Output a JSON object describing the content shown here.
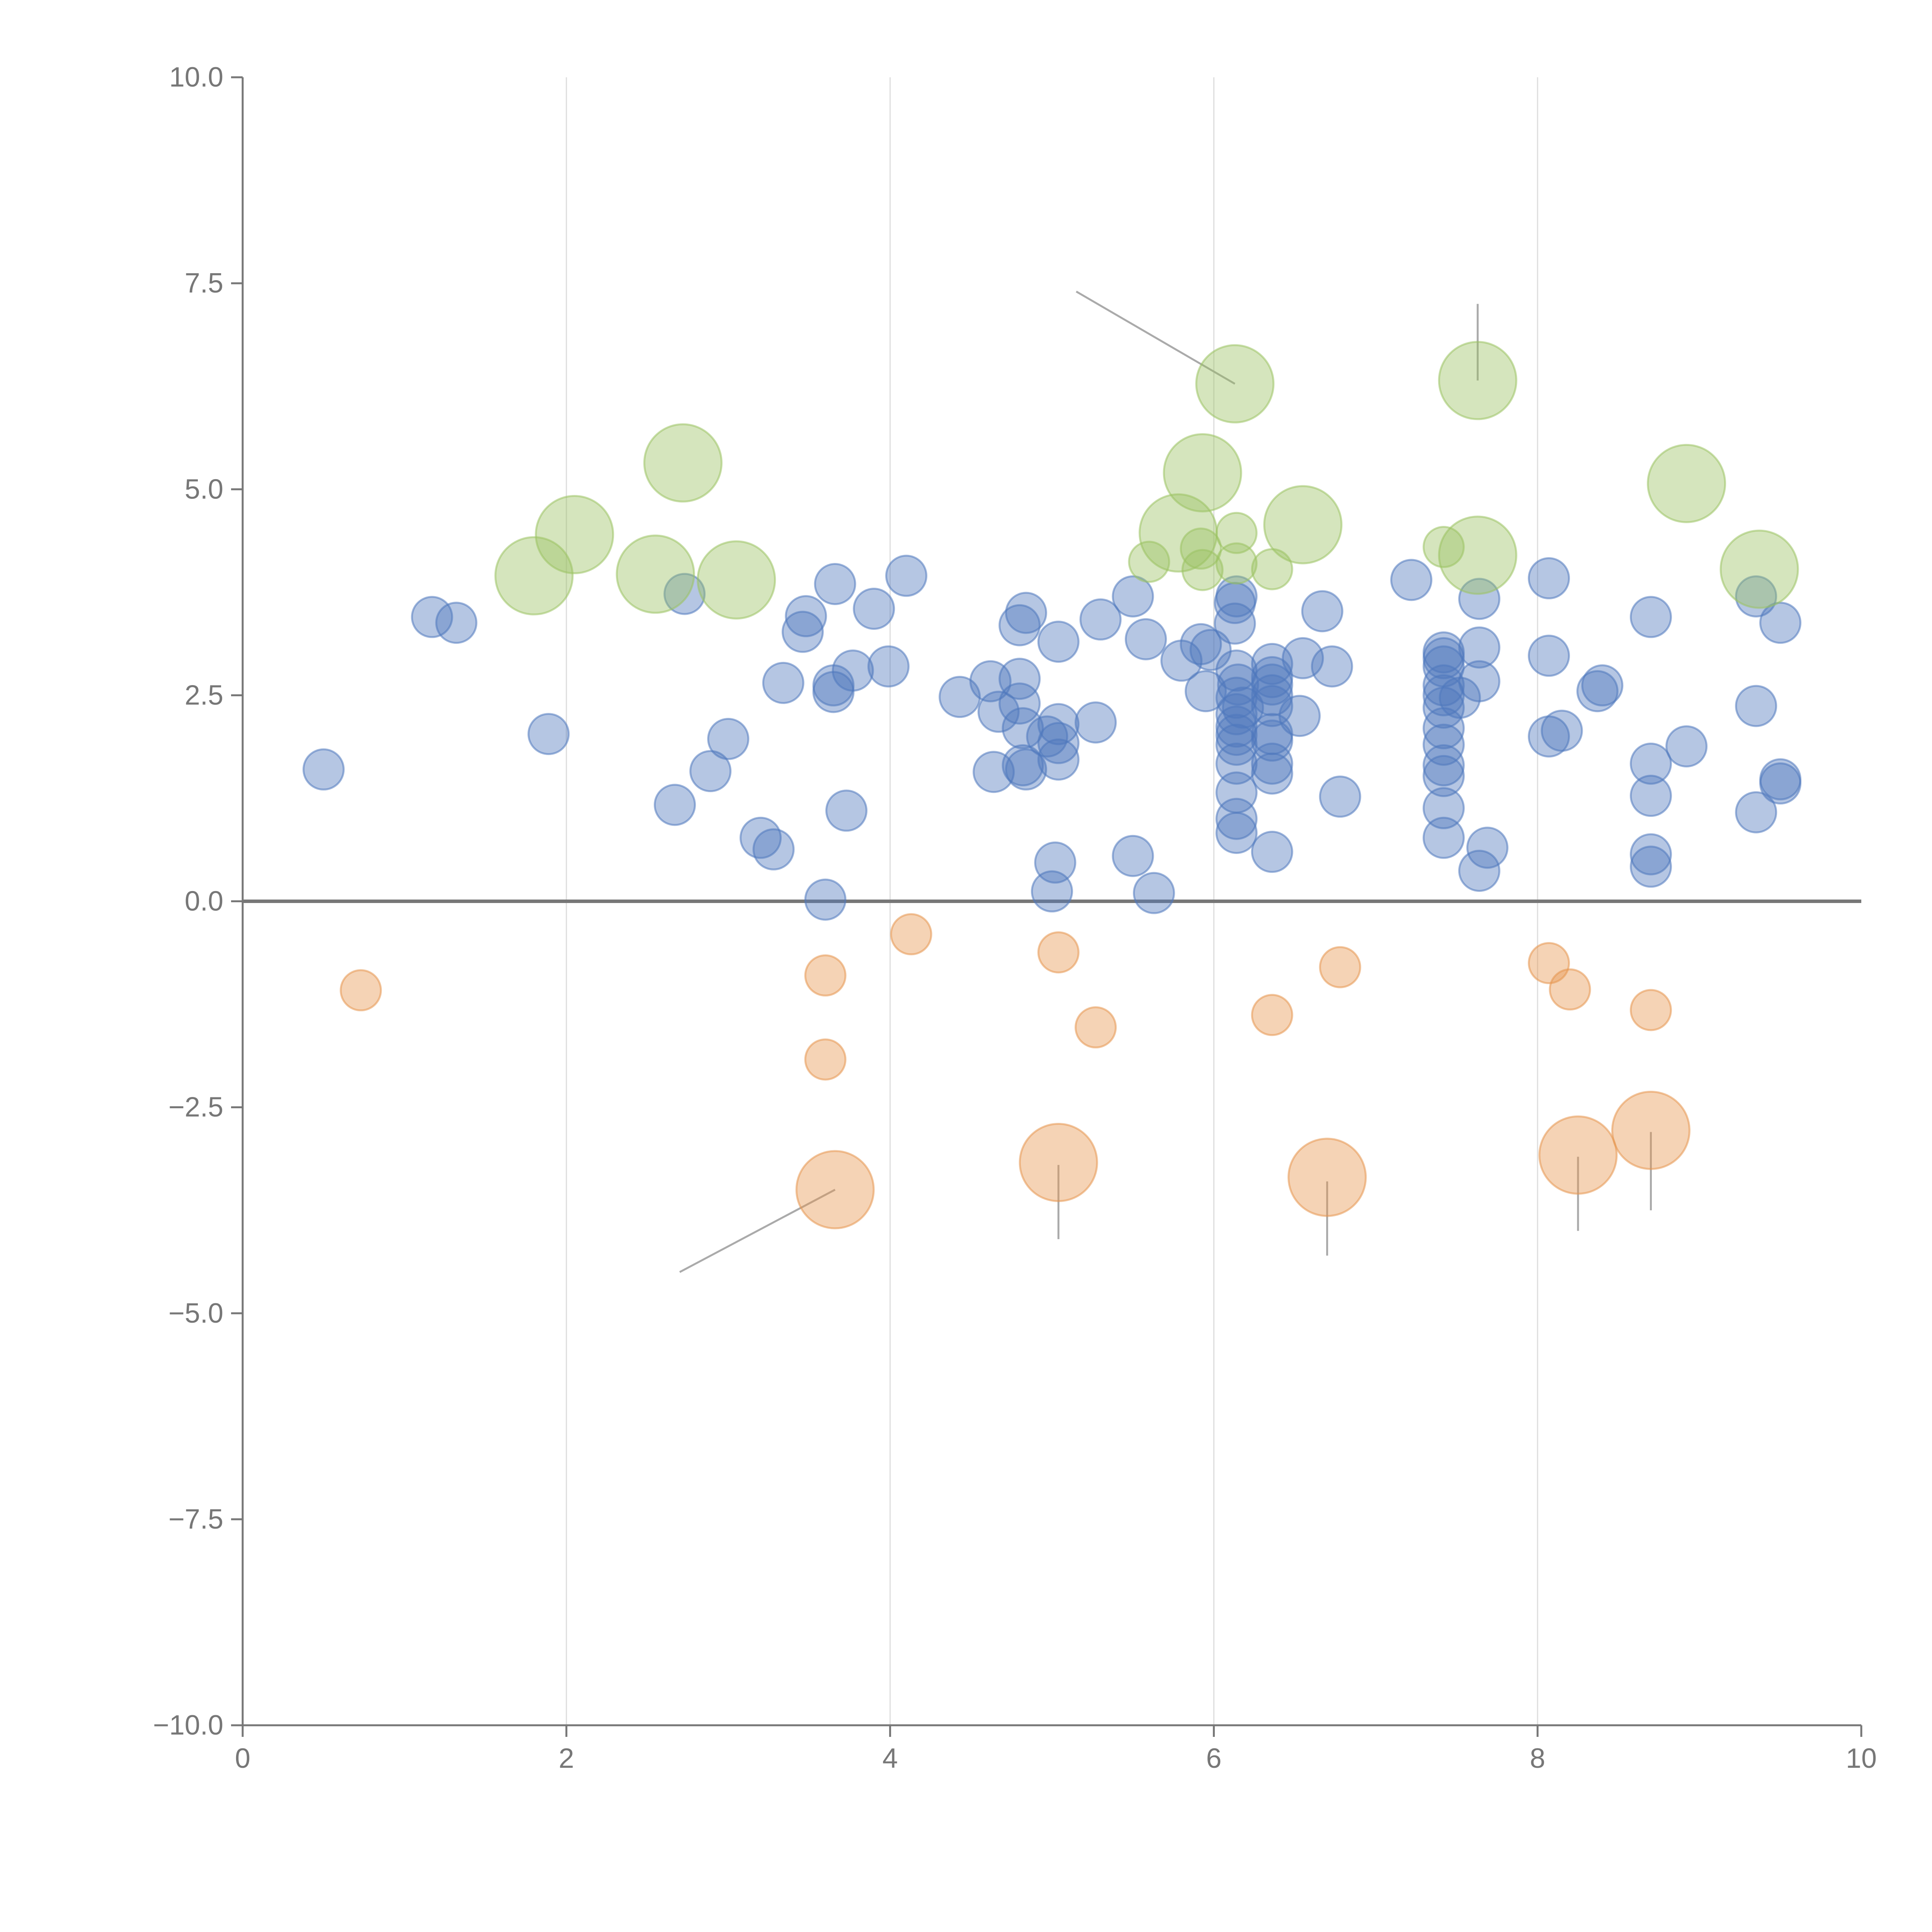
{
  "chart_data": {
    "type": "scatter",
    "title": "",
    "xlabel": "",
    "ylabel": "",
    "xlim": [
      0,
      10
    ],
    "ylim": [
      -10,
      10
    ],
    "x_ticks": [
      0,
      2,
      4,
      6,
      8,
      10
    ],
    "x_tick_labels": [
      "0",
      "2",
      "4",
      "6",
      "8",
      "10"
    ],
    "y_ticks": [
      10,
      7.5,
      5,
      2.5,
      0,
      -2.5,
      -5,
      -7.5,
      -10
    ],
    "y_tick_labels": [
      "10.0",
      "7.5",
      "5.0",
      "2.5",
      "0.0",
      "−2.5",
      "−5.0",
      "−7.5",
      "−10.0"
    ],
    "grid": {
      "x": true,
      "y": false
    },
    "zero_line": 0,
    "colors": {
      "blue": "#4f78bd",
      "green": "#9bc262",
      "orange": "#e6964f",
      "axis": "#777777",
      "grid": "#dddddd",
      "zero_line": "#777777",
      "leader": "#aaaaaa"
    },
    "series": [
      {
        "name": "positive",
        "color": "#4f78bd",
        "size": "small",
        "points": [
          [
            0.5,
            1.6
          ],
          [
            1.17,
            3.45
          ],
          [
            1.32,
            3.38
          ],
          [
            1.89,
            2.03
          ],
          [
            2.67,
            1.17
          ],
          [
            2.73,
            3.73
          ],
          [
            2.89,
            1.58
          ],
          [
            3.0,
            1.97
          ],
          [
            3.2,
            0.77
          ],
          [
            3.28,
            0.63
          ],
          [
            3.34,
            2.65
          ],
          [
            3.46,
            3.27
          ],
          [
            3.48,
            3.46
          ],
          [
            3.6,
            0.02
          ],
          [
            3.65,
            2.62
          ],
          [
            3.65,
            2.54
          ],
          [
            3.66,
            3.85
          ],
          [
            3.73,
            1.1
          ],
          [
            3.77,
            2.8
          ],
          [
            3.9,
            3.55
          ],
          [
            3.99,
            2.85
          ],
          [
            4.1,
            3.95
          ],
          [
            4.43,
            2.48
          ],
          [
            4.62,
            2.67
          ],
          [
            4.64,
            1.57
          ],
          [
            4.67,
            2.3
          ],
          [
            4.8,
            2.7
          ],
          [
            4.8,
            3.35
          ],
          [
            4.8,
            2.4
          ],
          [
            4.82,
            2.1
          ],
          [
            4.82,
            1.65
          ],
          [
            4.84,
            3.5
          ],
          [
            4.84,
            1.6
          ],
          [
            4.97,
            2.0
          ],
          [
            5.0,
            0.12
          ],
          [
            5.02,
            0.47
          ],
          [
            5.04,
            1.72
          ],
          [
            5.04,
            2.15
          ],
          [
            5.04,
            1.92
          ],
          [
            5.04,
            3.15
          ],
          [
            5.27,
            2.17
          ],
          [
            5.3,
            3.42
          ],
          [
            5.5,
            0.55
          ],
          [
            5.5,
            3.7
          ],
          [
            5.58,
            3.18
          ],
          [
            5.63,
            0.1
          ],
          [
            5.8,
            2.92
          ],
          [
            5.92,
            3.12
          ],
          [
            5.95,
            2.55
          ],
          [
            5.98,
            3.05
          ],
          [
            6.13,
            3.37
          ],
          [
            6.13,
            3.62
          ],
          [
            6.14,
            3.7
          ],
          [
            6.14,
            2.8
          ],
          [
            6.14,
            2.47
          ],
          [
            6.14,
            2.27
          ],
          [
            6.14,
            2.12
          ],
          [
            6.14,
            2.02
          ],
          [
            6.14,
            1.9
          ],
          [
            6.14,
            1.67
          ],
          [
            6.14,
            1.32
          ],
          [
            6.14,
            1.0
          ],
          [
            6.14,
            0.83
          ],
          [
            6.15,
            2.63
          ],
          [
            6.18,
            2.35
          ],
          [
            6.36,
            2.88
          ],
          [
            6.36,
            2.72
          ],
          [
            6.36,
            2.63
          ],
          [
            6.36,
            2.5
          ],
          [
            6.36,
            2.37
          ],
          [
            6.36,
            2.03
          ],
          [
            6.36,
            1.95
          ],
          [
            6.36,
            1.67
          ],
          [
            6.36,
            1.55
          ],
          [
            6.36,
            0.6
          ],
          [
            6.55,
            2.95
          ],
          [
            6.53,
            2.25
          ],
          [
            6.67,
            3.52
          ],
          [
            6.73,
            2.85
          ],
          [
            6.78,
            1.27
          ],
          [
            7.22,
            3.9
          ],
          [
            7.42,
            3.02
          ],
          [
            7.42,
            2.95
          ],
          [
            7.42,
            2.85
          ],
          [
            7.42,
            2.62
          ],
          [
            7.42,
            2.5
          ],
          [
            7.42,
            2.35
          ],
          [
            7.42,
            2.1
          ],
          [
            7.42,
            1.9
          ],
          [
            7.42,
            1.65
          ],
          [
            7.42,
            1.52
          ],
          [
            7.42,
            1.13
          ],
          [
            7.42,
            0.77
          ],
          [
            7.52,
            2.47
          ],
          [
            7.64,
            3.67
          ],
          [
            7.64,
            3.08
          ],
          [
            7.64,
            2.67
          ],
          [
            7.64,
            0.37
          ],
          [
            7.69,
            0.65
          ],
          [
            8.07,
            3.92
          ],
          [
            8.07,
            2.98
          ],
          [
            8.07,
            2.0
          ],
          [
            8.15,
            2.07
          ],
          [
            8.37,
            2.55
          ],
          [
            8.4,
            2.62
          ],
          [
            8.7,
            3.45
          ],
          [
            8.7,
            1.67
          ],
          [
            8.7,
            1.28
          ],
          [
            8.7,
            0.57
          ],
          [
            8.7,
            0.42
          ],
          [
            8.92,
            1.88
          ],
          [
            9.35,
            3.7
          ],
          [
            9.35,
            2.37
          ],
          [
            9.35,
            1.08
          ],
          [
            9.5,
            3.38
          ],
          [
            9.5,
            1.48
          ],
          [
            9.5,
            1.43
          ]
        ]
      },
      {
        "name": "highlight-positive",
        "color": "#9bc262",
        "size": "large",
        "points": [
          [
            1.8,
            3.95
          ],
          [
            2.05,
            4.45
          ],
          [
            2.55,
            3.97
          ],
          [
            2.72,
            5.32
          ],
          [
            3.05,
            3.9
          ],
          [
            5.78,
            4.47
          ],
          [
            5.93,
            5.2
          ],
          [
            6.13,
            6.28
          ],
          [
            6.55,
            4.57
          ],
          [
            7.63,
            6.32
          ],
          [
            7.63,
            4.2
          ],
          [
            8.92,
            5.07
          ],
          [
            9.37,
            4.03
          ]
        ]
      },
      {
        "name": "highlight-positive-small",
        "color": "#9bc262",
        "size": "small",
        "points": [
          [
            5.6,
            4.12
          ],
          [
            5.92,
            4.28
          ],
          [
            5.93,
            4.02
          ],
          [
            6.14,
            4.47
          ],
          [
            6.14,
            4.1
          ],
          [
            6.36,
            4.03
          ],
          [
            7.42,
            4.3
          ]
        ]
      },
      {
        "name": "negative",
        "color": "#e6964f",
        "size": "small",
        "points": [
          [
            0.73,
            -1.08
          ],
          [
            3.6,
            -0.9
          ],
          [
            3.6,
            -1.92
          ],
          [
            4.13,
            -0.4
          ],
          [
            5.04,
            -0.62
          ],
          [
            5.27,
            -1.53
          ],
          [
            6.36,
            -1.38
          ],
          [
            6.78,
            -0.8
          ],
          [
            8.07,
            -0.75
          ],
          [
            8.2,
            -1.07
          ],
          [
            8.7,
            -1.32
          ]
        ]
      },
      {
        "name": "highlight-negative",
        "color": "#e6964f",
        "size": "large",
        "points": [
          [
            3.66,
            -3.5
          ],
          [
            5.04,
            -3.17
          ],
          [
            6.7,
            -3.35
          ],
          [
            8.25,
            -3.08
          ],
          [
            8.7,
            -2.78
          ]
        ]
      }
    ]
  }
}
